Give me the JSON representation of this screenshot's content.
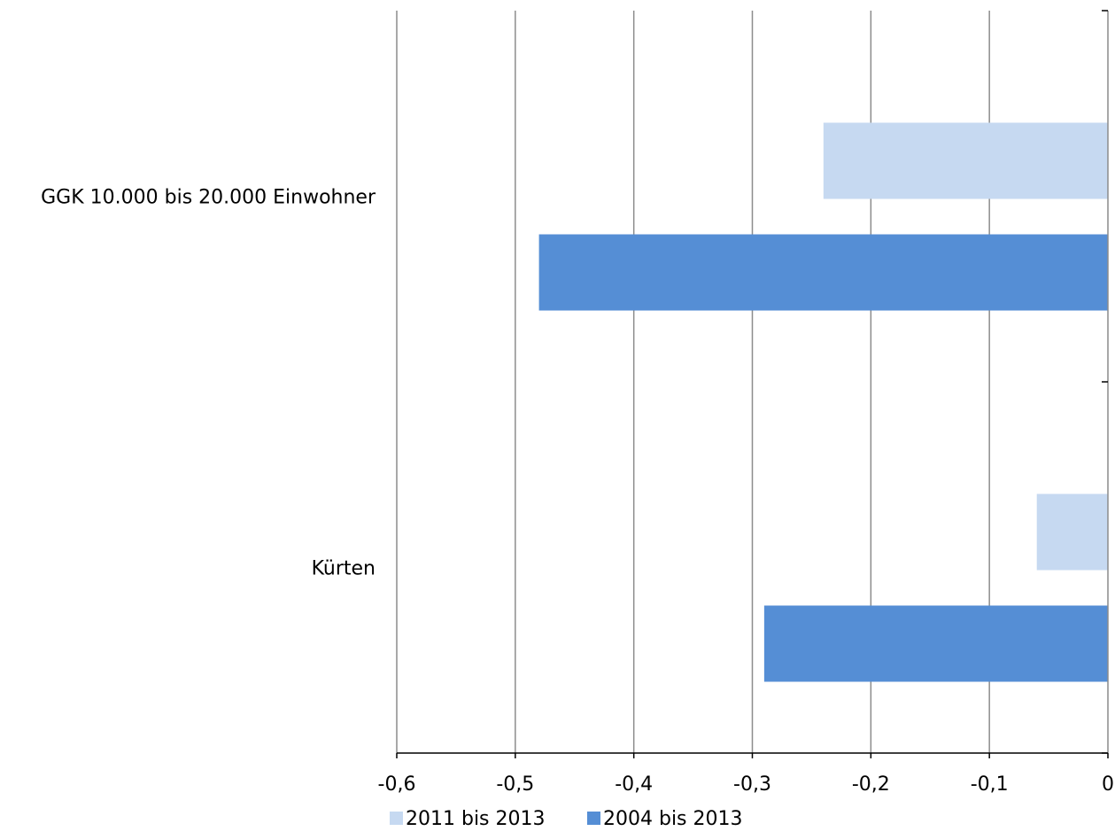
{
  "chart_data": {
    "type": "bar",
    "orientation": "horizontal",
    "categories": [
      "GGK 10.000 bis 20.000 Einwohner",
      "Kürten"
    ],
    "series": [
      {
        "name": "2011 bis 2013",
        "color": "#c6d9f1",
        "values": [
          -0.24,
          -0.06
        ]
      },
      {
        "name": "2004 bis 2013",
        "color": "#558ed5",
        "values": [
          -0.48,
          -0.29
        ]
      }
    ],
    "xlim": [
      -0.6,
      0
    ],
    "x_ticks": [
      -0.6,
      -0.5,
      -0.4,
      -0.3,
      -0.2,
      -0.1,
      0
    ],
    "x_tick_labels": [
      "-0,6",
      "-0,5",
      "-0,4",
      "-0,3",
      "-0,2",
      "-0,1",
      "0"
    ],
    "grid": true,
    "legend_position": "bottom",
    "title": "",
    "xlabel": "",
    "ylabel": ""
  }
}
